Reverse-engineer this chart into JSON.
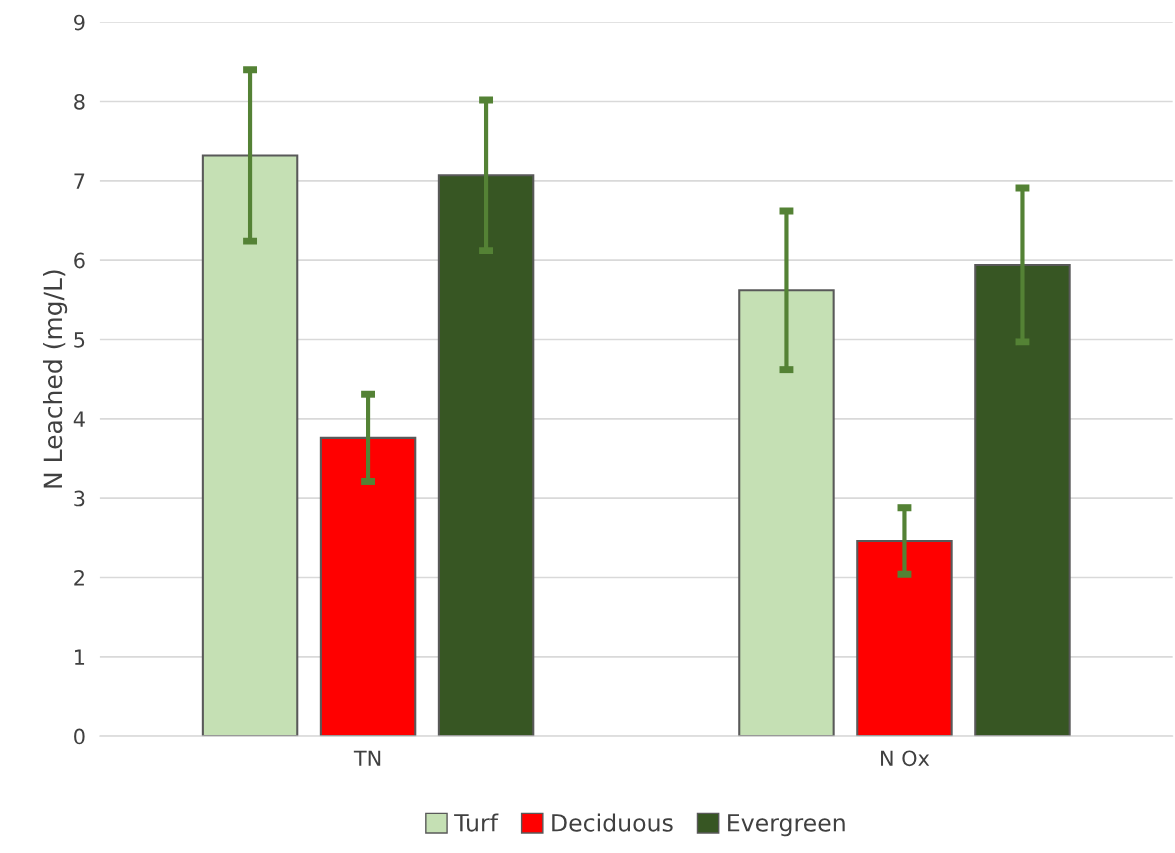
{
  "chart_data": {
    "type": "bar",
    "ylabel": "N Leached (mg/L)",
    "categories": [
      "TN",
      "N Ox"
    ],
    "series": [
      {
        "name": "Turf",
        "color": "#c5e0b4",
        "values": [
          7.32,
          5.62
        ],
        "errors": [
          1.08,
          1.0
        ]
      },
      {
        "name": "Deciduous",
        "color": "#ff0000",
        "values": [
          3.76,
          2.46
        ],
        "errors": [
          0.55,
          0.42
        ]
      },
      {
        "name": "Evergreen",
        "color": "#375623",
        "values": [
          7.07,
          5.94
        ],
        "errors": [
          0.95,
          0.97
        ]
      }
    ],
    "ylim": [
      0,
      9
    ],
    "yticks": [
      0,
      1,
      2,
      3,
      4,
      5,
      6,
      7,
      8,
      9
    ],
    "grid": "y",
    "legend": "bottom"
  }
}
